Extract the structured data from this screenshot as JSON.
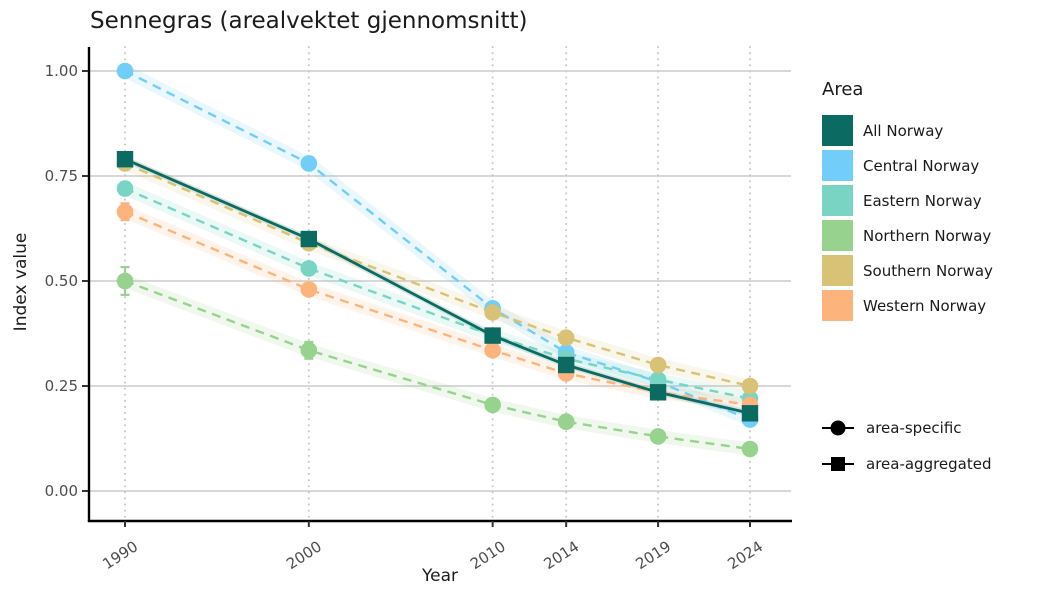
{
  "title": "Sennegras (arealvektet gjennomsnitt)",
  "chart_data": {
    "type": "line",
    "title": "Sennegras (arealvektet gjennomsnitt)",
    "xlabel": "Year",
    "ylabel": "Index value",
    "x": [
      1990,
      2000,
      2010,
      2014,
      2019,
      2024
    ],
    "yticks": [
      0,
      0.25,
      0.5,
      0.75,
      1
    ],
    "ylim": [
      0,
      1.0
    ],
    "grid": {
      "horizontal": "solid",
      "vertical": "dotted"
    },
    "colors": {
      "grid_h": "#d2d2d2",
      "grid_v": "#c8c8c8",
      "axis": "#000000",
      "tick_label": "#4d4d4d"
    },
    "series": [
      {
        "name": "All Norway",
        "color": "#0b6a62",
        "marker": "square",
        "line": "solid",
        "values": [
          0.79,
          0.6,
          0.37,
          0.3,
          0.235,
          0.185
        ]
      },
      {
        "name": "Central Norway",
        "color": "#72cdf8",
        "marker": "circle",
        "line": "dashed",
        "values": [
          1.0,
          0.78,
          0.435,
          0.33,
          0.26,
          0.17
        ]
      },
      {
        "name": "Eastern Norway",
        "color": "#79d4c3",
        "marker": "circle",
        "line": "dashed",
        "values": [
          0.72,
          0.53,
          0.37,
          0.315,
          0.265,
          0.22
        ]
      },
      {
        "name": "Northern Norway",
        "color": "#97d28e",
        "marker": "circle",
        "line": "dashed",
        "values": [
          0.5,
          0.335,
          0.205,
          0.165,
          0.13,
          0.1
        ],
        "errors": [
          0.033,
          0.02,
          0.01,
          0.013,
          0.011,
          0.012
        ]
      },
      {
        "name": "Southern Norway",
        "color": "#d8c276",
        "marker": "circle",
        "line": "dashed",
        "values": [
          0.78,
          0.59,
          0.425,
          0.365,
          0.3,
          0.25
        ]
      },
      {
        "name": "Western Norway",
        "color": "#fdb47c",
        "marker": "circle",
        "line": "dashed",
        "values": [
          0.665,
          0.48,
          0.335,
          0.28,
          0.235,
          0.205
        ],
        "errors": [
          0.02,
          0.009,
          0.006,
          0,
          0,
          0
        ]
      }
    ],
    "legend": {
      "title": "Area",
      "position": "right"
    },
    "shape_legend": [
      {
        "shape": "circle",
        "label": "area-specific"
      },
      {
        "shape": "square",
        "label": "area-aggregated"
      }
    ]
  }
}
